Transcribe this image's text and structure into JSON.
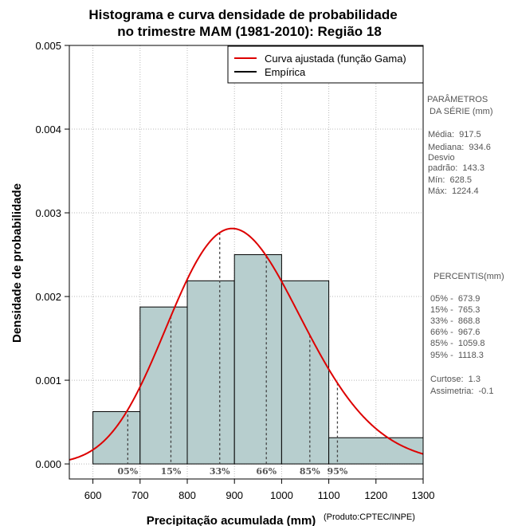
{
  "chart_data": {
    "type": "histogram",
    "title_line1": "Histograma e curva densidade de probabilidade",
    "title_line2": "no trimestre MAM (1981-2010): Região 18",
    "xlabel": "Precipitação acumulada (mm)",
    "ylabel": "Densidade de probabilidade",
    "credit": "(Produto:CPTEC/INPE)",
    "xlim": [
      550,
      1300
    ],
    "ylim": [
      -0.00018,
      0.005
    ],
    "x_ticks": [
      600,
      700,
      800,
      900,
      1000,
      1100,
      1200,
      1300
    ],
    "x_tick_labels": [
      "600",
      "700",
      "800",
      "900",
      "1000",
      "1100",
      "1200",
      "1300"
    ],
    "y_ticks": [
      0,
      0.001,
      0.002,
      0.003,
      0.004,
      0.005
    ],
    "y_tick_labels": [
      "0.000",
      "0.001",
      "0.002",
      "0.003",
      "0.004",
      "0.005"
    ],
    "grid": true,
    "bins": [
      {
        "x0": 600,
        "x1": 700,
        "density": 0.000625
      },
      {
        "x0": 700,
        "x1": 800,
        "density": 0.001875
      },
      {
        "x0": 800,
        "x1": 900,
        "density": 0.002188
      },
      {
        "x0": 900,
        "x1": 1000,
        "density": 0.0025
      },
      {
        "x0": 1000,
        "x1": 1100,
        "density": 0.002188
      },
      {
        "x0": 1100,
        "x1": 1300,
        "density": 0.000313
      }
    ],
    "bar_color": "#b7cece",
    "curve_color": "#dd0000",
    "gamma_curve": {
      "mean": 917.5,
      "sd": 143.3
    },
    "percentile_lines": [
      {
        "label": "05%",
        "value": 673.9
      },
      {
        "label": "15%",
        "value": 765.3
      },
      {
        "label": "33%",
        "value": 868.8
      },
      {
        "label": "66%",
        "value": 967.6
      },
      {
        "label": "85%",
        "value": 1059.8
      },
      {
        "label": "95%",
        "value": 1118.3
      }
    ],
    "legend": {
      "position": "top-right",
      "entries": [
        {
          "label": "Curva ajustada (função Gama)",
          "color": "#dd0000"
        },
        {
          "label": "Empírica",
          "color": "#000000"
        }
      ]
    }
  },
  "side_panel": {
    "params_title_1": "PARÂMETROS",
    "params_title_2": " DA SÉRIE (mm)",
    "media": "Média:  917.5",
    "mediana": "Mediana:  934.6",
    "desvio_1": "Desvio",
    "desvio_2": "padrão:  143.3",
    "min": "Mín:  628.5",
    "max": "Máx:  1224.4",
    "pct_title": "PERCENTIS(mm)",
    "p05": "05% -  673.9",
    "p15": "15% -  765.3",
    "p33": "33% -  868.8",
    "p66": "66% -  967.6",
    "p85": "85% -  1059.8",
    "p95": "95% -  1118.3",
    "curtose": "Curtose:  1.3",
    "assimetria": "Assimetria:  -0.1"
  }
}
